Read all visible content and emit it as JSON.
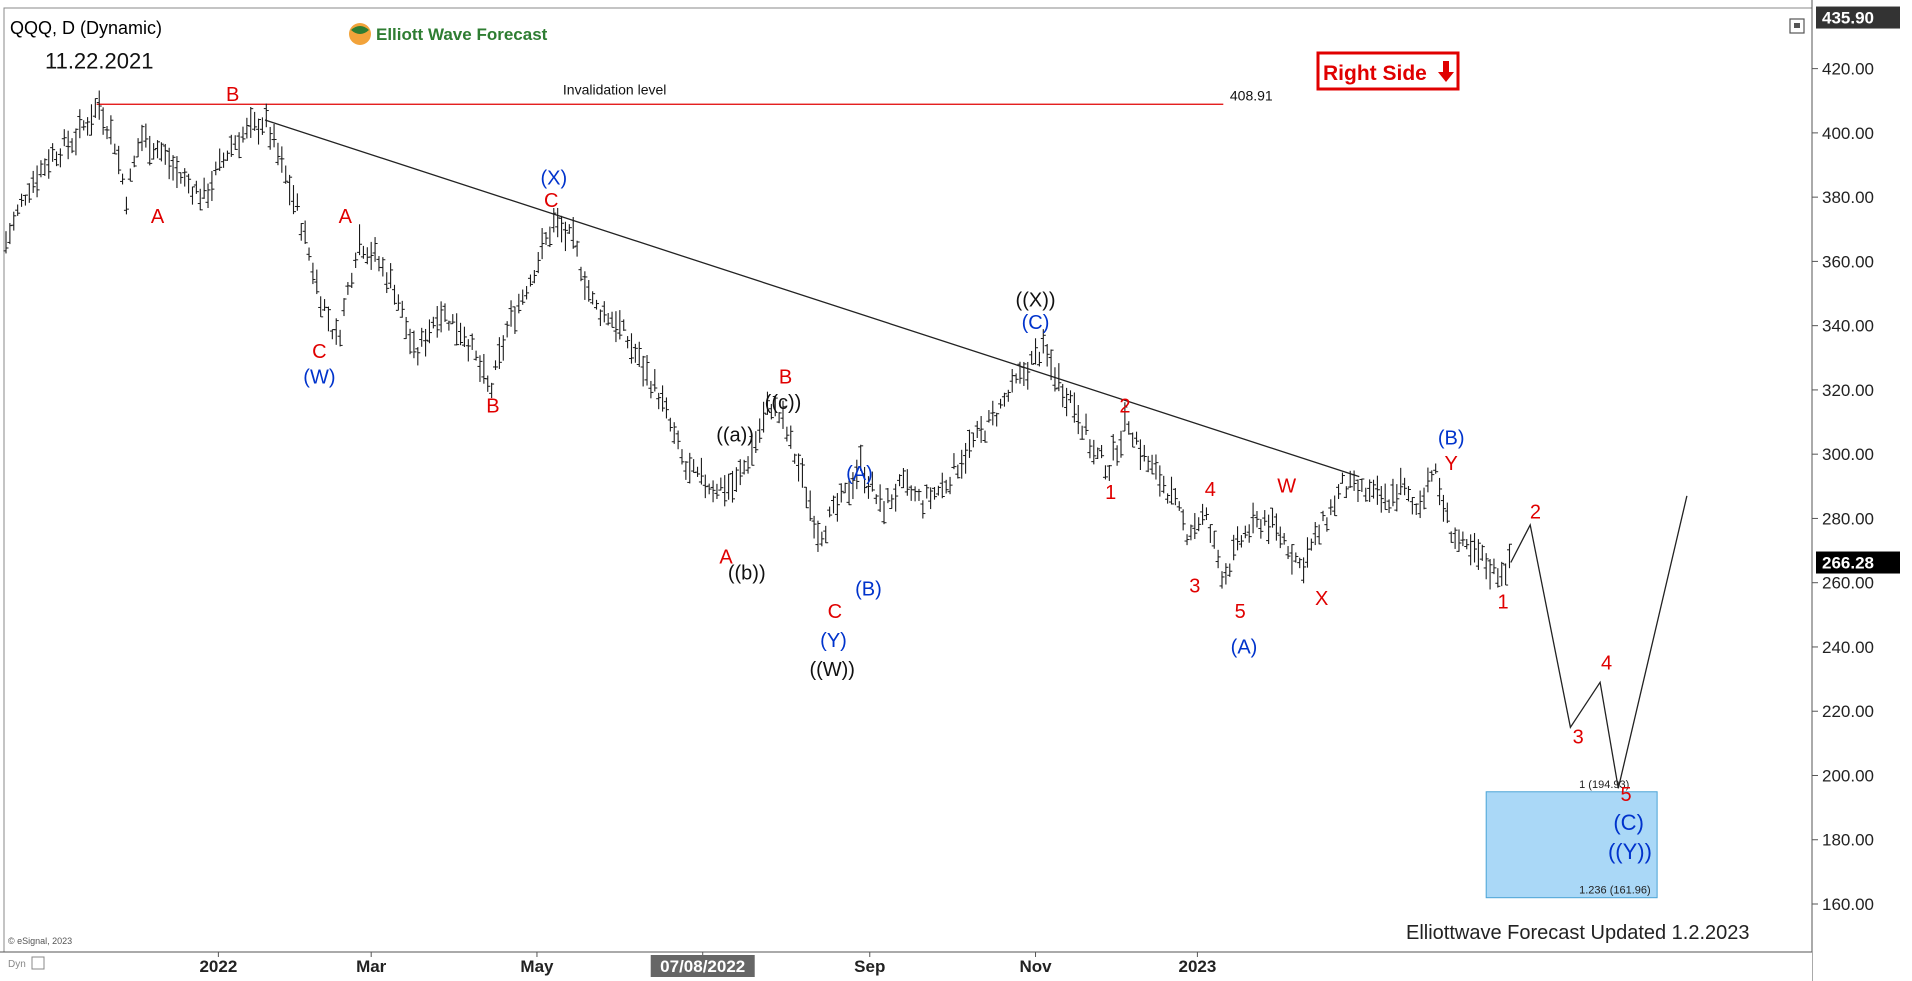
{
  "header": {
    "symbol": "QQQ, D (Dynamic)",
    "logo_text": "Elliott Wave Forecast",
    "start_date_label": "11.22.2021",
    "right_side_label": "Right Side",
    "footer_credit": "© eSignal, 2023",
    "corner_label": "Dyn",
    "updated_text": "Elliottwave Forecast Updated 1.2.2023"
  },
  "chart_data": {
    "type": "ohlc-bar",
    "ylim": [
      150,
      440
    ],
    "y_ticks": [
      160,
      180,
      200,
      220,
      240,
      260,
      280,
      300,
      320,
      340,
      360,
      380,
      400,
      420
    ],
    "x_ticks": [
      "2022",
      "Mar",
      "May",
      "07/08/2022",
      "Sep",
      "Nov",
      "2023"
    ],
    "price_labels": {
      "top": "435.90",
      "current": "266.28"
    },
    "invalidation": {
      "label": "Invalidation level",
      "value": 408.91,
      "value_label": "408.91"
    },
    "trendline": {
      "from": [
        200,
        404
      ],
      "to": [
        1045,
        293
      ]
    },
    "target_box": {
      "top": 194.93,
      "bottom": 161.96,
      "top_label": "1 (194.93)",
      "bottom_label": "1.236 (161.96)"
    },
    "price_path": [
      [
        0,
        366
      ],
      [
        17,
        383
      ],
      [
        35,
        393
      ],
      [
        53,
        398
      ],
      [
        72,
        408.9
      ],
      [
        84,
        397
      ],
      [
        93,
        380
      ],
      [
        104,
        399
      ],
      [
        118,
        395
      ],
      [
        133,
        387
      ],
      [
        153,
        380
      ],
      [
        175,
        397
      ],
      [
        200,
        404
      ],
      [
        211,
        392
      ],
      [
        226,
        375
      ],
      [
        242,
        350
      ],
      [
        256,
        335
      ],
      [
        272,
        367
      ],
      [
        284,
        362
      ],
      [
        300,
        352
      ],
      [
        316,
        330
      ],
      [
        334,
        345
      ],
      [
        354,
        338
      ],
      [
        374,
        319
      ],
      [
        388,
        340
      ],
      [
        405,
        355
      ],
      [
        423,
        372
      ],
      [
        438,
        366
      ],
      [
        454,
        346
      ],
      [
        470,
        342
      ],
      [
        488,
        330
      ],
      [
        505,
        318
      ],
      [
        525,
        295
      ],
      [
        545,
        290
      ],
      [
        563,
        290
      ],
      [
        575,
        300
      ],
      [
        590,
        316
      ],
      [
        600,
        310
      ],
      [
        612,
        296
      ],
      [
        628,
        275
      ],
      [
        645,
        285
      ],
      [
        660,
        297
      ],
      [
        676,
        283
      ],
      [
        692,
        290
      ],
      [
        708,
        285
      ],
      [
        724,
        290
      ],
      [
        740,
        300
      ],
      [
        760,
        310
      ],
      [
        782,
        323
      ],
      [
        800,
        333
      ],
      [
        814,
        322
      ],
      [
        826,
        315
      ],
      [
        840,
        300
      ],
      [
        852,
        296
      ],
      [
        866,
        311
      ],
      [
        880,
        298
      ],
      [
        896,
        290
      ],
      [
        912,
        276
      ],
      [
        926,
        281
      ],
      [
        940,
        262
      ],
      [
        956,
        275
      ],
      [
        972,
        280
      ],
      [
        986,
        274
      ],
      [
        1000,
        265
      ],
      [
        1016,
        277
      ],
      [
        1032,
        290
      ],
      [
        1050,
        288
      ],
      [
        1066,
        285
      ],
      [
        1078,
        290
      ],
      [
        1088,
        282
      ],
      [
        1102,
        296
      ],
      [
        1114,
        278
      ],
      [
        1126,
        270
      ],
      [
        1138,
        268
      ],
      [
        1150,
        263
      ],
      [
        1162,
        266
      ]
    ],
    "projection_path": [
      [
        1162,
        266.28
      ],
      [
        1177,
        278
      ],
      [
        1208,
        215
      ],
      [
        1231,
        229
      ],
      [
        1245,
        196
      ],
      [
        1298,
        287
      ]
    ],
    "wave_labels": [
      {
        "text": "11.22.2021",
        "x": 72,
        "y": 420,
        "color": "black",
        "size": "large"
      },
      {
        "text": "B",
        "x": 175,
        "y": 410,
        "color": "red"
      },
      {
        "text": "A",
        "x": 117,
        "y": 372,
        "color": "red"
      },
      {
        "text": "A",
        "x": 262,
        "y": 372,
        "color": "red"
      },
      {
        "text": "C",
        "x": 242,
        "y": 330,
        "color": "red"
      },
      {
        "text": "(W)",
        "x": 242,
        "y": 322,
        "color": "blue"
      },
      {
        "text": "B",
        "x": 376,
        "y": 313,
        "color": "red"
      },
      {
        "text": "(X)",
        "x": 423,
        "y": 384,
        "color": "blue"
      },
      {
        "text": "C",
        "x": 421,
        "y": 377,
        "color": "red"
      },
      {
        "text": "B",
        "x": 602,
        "y": 322,
        "color": "red"
      },
      {
        "text": "((c))",
        "x": 600,
        "y": 314,
        "color": "black"
      },
      {
        "text": "((a))",
        "x": 563,
        "y": 304,
        "color": "black"
      },
      {
        "text": "A",
        "x": 556,
        "y": 266,
        "color": "red"
      },
      {
        "text": "((b))",
        "x": 572,
        "y": 261,
        "color": "black"
      },
      {
        "text": "(A)",
        "x": 659,
        "y": 292,
        "color": "blue"
      },
      {
        "text": "(B)",
        "x": 666,
        "y": 256,
        "color": "blue"
      },
      {
        "text": "C",
        "x": 640,
        "y": 249,
        "color": "red"
      },
      {
        "text": "(Y)",
        "x": 639,
        "y": 240,
        "color": "blue"
      },
      {
        "text": "((W))",
        "x": 638,
        "y": 231,
        "color": "black"
      },
      {
        "text": "((X))",
        "x": 795,
        "y": 346,
        "color": "black"
      },
      {
        "text": "(C)",
        "x": 795,
        "y": 339,
        "color": "blue"
      },
      {
        "text": "2",
        "x": 864,
        "y": 313,
        "color": "red"
      },
      {
        "text": "1",
        "x": 853,
        "y": 286,
        "color": "red"
      },
      {
        "text": "4",
        "x": 930,
        "y": 287,
        "color": "red"
      },
      {
        "text": "3",
        "x": 918,
        "y": 257,
        "color": "red"
      },
      {
        "text": "5",
        "x": 953,
        "y": 249,
        "color": "red"
      },
      {
        "text": "(A)",
        "x": 956,
        "y": 238,
        "color": "blue"
      },
      {
        "text": "W",
        "x": 989,
        "y": 288,
        "color": "red"
      },
      {
        "text": "X",
        "x": 1016,
        "y": 253,
        "color": "red"
      },
      {
        "text": "(B)",
        "x": 1116,
        "y": 303,
        "color": "blue"
      },
      {
        "text": "Y",
        "x": 1116,
        "y": 295,
        "color": "red"
      },
      {
        "text": "2",
        "x": 1181,
        "y": 280,
        "color": "red"
      },
      {
        "text": "1",
        "x": 1156,
        "y": 252,
        "color": "red"
      },
      {
        "text": "4",
        "x": 1236,
        "y": 233,
        "color": "red"
      },
      {
        "text": "3",
        "x": 1214,
        "y": 210,
        "color": "red"
      },
      {
        "text": "5",
        "x": 1251,
        "y": 192,
        "color": "red"
      },
      {
        "text": "(C)",
        "x": 1253,
        "y": 183,
        "color": "blue",
        "size": "large"
      },
      {
        "text": "((Y))",
        "x": 1254,
        "y": 174,
        "color": "blue",
        "size": "large"
      }
    ]
  },
  "colors": {
    "bars": "#1a1a1a",
    "red": "#e00000",
    "blue": "#0033cc",
    "target_box": "#aad8f7",
    "target_border": "#4ba3d6",
    "right_side": "#e00000",
    "logo_green": "#2e7d32"
  }
}
